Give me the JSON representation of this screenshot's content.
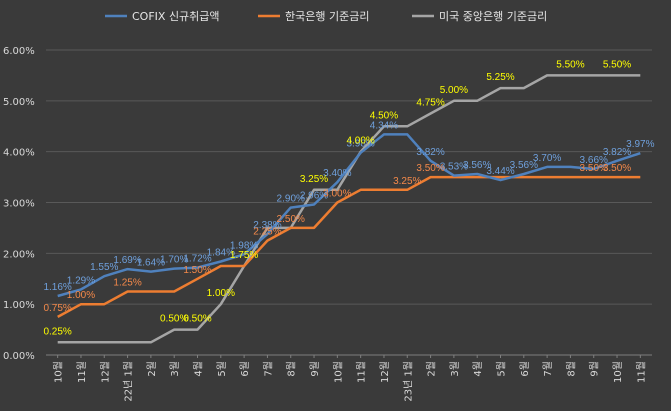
{
  "chart_data": {
    "type": "line",
    "title": "",
    "xlabel": "",
    "ylabel": "",
    "ylim": [
      0,
      6
    ],
    "yticks": [
      "0.00%",
      "1.00%",
      "2.00%",
      "3.00%",
      "4.00%",
      "5.00%",
      "6.00%"
    ],
    "categories": [
      "10월",
      "11월",
      "12월",
      "22년 1월",
      "2월",
      "3월",
      "4월",
      "5월",
      "6월",
      "7월",
      "8월",
      "9월",
      "10월",
      "11월",
      "12월",
      "23년 1월",
      "2월",
      "3월",
      "4월",
      "5월",
      "6월",
      "7월",
      "8월",
      "9월",
      "10월",
      "11월"
    ],
    "grid": true,
    "legend_position": "top",
    "series": [
      {
        "name": "COFIX 신규취급액",
        "color": "#4f81bd",
        "label_color": "#6fa0dc",
        "values": [
          1.16,
          1.29,
          1.55,
          1.69,
          1.64,
          1.7,
          1.72,
          1.84,
          1.98,
          2.38,
          2.9,
          2.96,
          3.4,
          3.98,
          4.34,
          4.34,
          3.82,
          3.53,
          3.56,
          3.44,
          3.56,
          3.7,
          3.7,
          3.66,
          3.82,
          3.97
        ],
        "labels": [
          "1.16%",
          "1.29%",
          "1.55%",
          "1.69%",
          "1.64%",
          "1.70%",
          "1.72%",
          "1.84%",
          "1.98%",
          "2.38%",
          "2.90%",
          "2.96%",
          "3.40%",
          "3.98%",
          "4.34%",
          "",
          "3.82%",
          "3.53%",
          "3.56%",
          "3.44%",
          "3.56%",
          "3.70%",
          "",
          "3.66%",
          "3.82%",
          "3.97%"
        ]
      },
      {
        "name": "한국은행 기준금리",
        "color": "#ed7d31",
        "label_color": "#f4894a",
        "values": [
          0.75,
          1.0,
          1.0,
          1.25,
          1.25,
          1.25,
          1.5,
          1.75,
          1.75,
          2.25,
          2.5,
          2.5,
          3.0,
          3.25,
          3.25,
          3.25,
          3.5,
          3.5,
          3.5,
          3.5,
          3.5,
          3.5,
          3.5,
          3.5,
          3.5,
          3.5
        ],
        "labels": [
          "0.75%",
          "1.00%",
          "",
          "1.25%",
          "",
          "",
          "1.50%",
          "",
          "",
          "2.25%",
          "2.50%",
          "",
          "3.00%",
          "",
          "",
          "3.25%",
          "3.50%",
          "",
          "",
          "",
          "",
          "",
          "",
          "3.50%",
          "3.50%",
          ""
        ]
      },
      {
        "name": "미국 중앙은행 기준금리",
        "color": "#a5a5a5",
        "label_color": "#ffff00",
        "values": [
          0.25,
          0.25,
          0.25,
          0.25,
          0.25,
          0.5,
          0.5,
          1.0,
          1.75,
          2.5,
          2.5,
          3.25,
          3.25,
          4.0,
          4.5,
          4.5,
          4.75,
          5.0,
          5.0,
          5.25,
          5.25,
          5.5,
          5.5,
          5.5,
          5.5,
          5.5
        ],
        "labels": [
          "0.25%",
          "",
          "",
          "",
          "",
          "0.50%",
          "0.50%",
          "1.00%",
          "1.75%",
          "",
          "",
          "3.25%",
          "",
          "4.00%",
          "4.50%",
          "",
          "4.75%",
          "5.00%",
          "",
          "5.25%",
          "",
          "",
          "5.50%",
          "",
          "5.50%",
          ""
        ]
      }
    ]
  }
}
